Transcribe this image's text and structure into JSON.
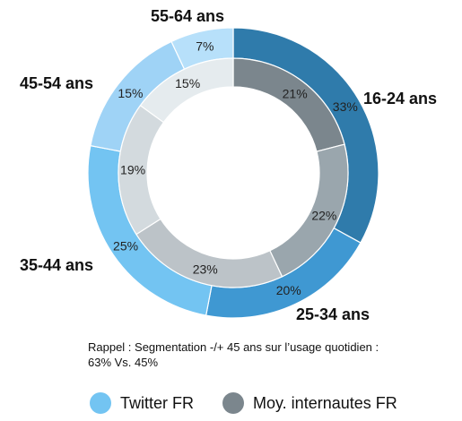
{
  "chart_data": {
    "type": "donut",
    "categories": [
      "16-24 ans",
      "25-34 ans",
      "35-44 ans",
      "45-54 ans",
      "55-64 ans"
    ],
    "series": [
      {
        "name": "Twitter FR",
        "ring": "outer",
        "values": [
          33,
          20,
          25,
          15,
          7
        ],
        "labels": [
          "33%",
          "20%",
          "25%",
          "15%",
          "7%"
        ],
        "colors": [
          "#2f7bab",
          "#3f98d2",
          "#73c4f2",
          "#9fd3f6",
          "#b7e0fa"
        ]
      },
      {
        "name": "Moy. internautes FR",
        "ring": "inner",
        "values": [
          21,
          22,
          23,
          19,
          15
        ],
        "labels": [
          "21%",
          "22%",
          "23%",
          "19%",
          "15%"
        ],
        "colors": [
          "#7b868d",
          "#9aa6ad",
          "#bcc3c8",
          "#d3dade",
          "#e5ebee"
        ]
      }
    ]
  },
  "note": "Rappel : Segmentation -/+ 45 ans sur l’usage quotidien : 63% Vs. 45%",
  "legend": [
    {
      "label": "Twitter FR",
      "color": "#73c4f2"
    },
    {
      "label": "Moy. internautes FR",
      "color": "#7b868d"
    }
  ]
}
